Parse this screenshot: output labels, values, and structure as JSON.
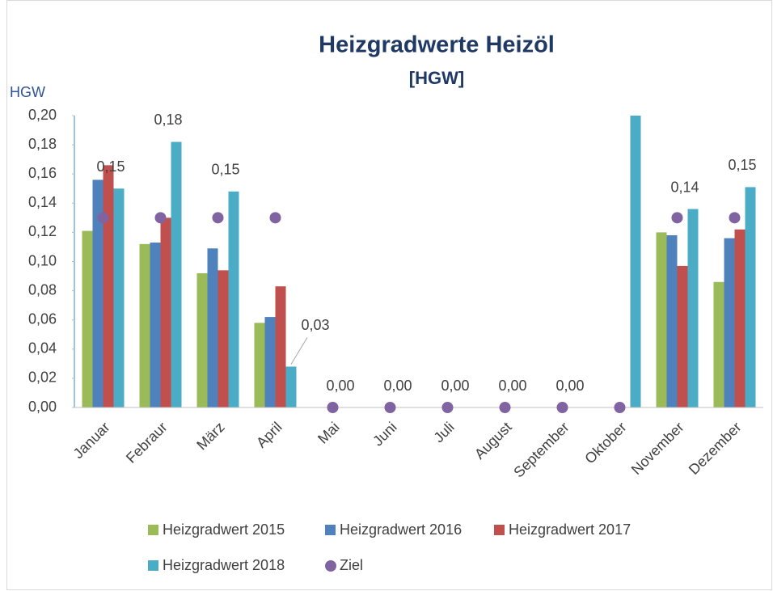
{
  "chart_data": {
    "type": "bar",
    "title": "Heizgradwerte Heizöl",
    "subtitle": "[HGW]",
    "y_label": "HGW",
    "categories": [
      "Januar",
      "Febraur",
      "März",
      "April",
      "Mai",
      "Juni",
      "Juli",
      "August",
      "September",
      "Oktober",
      "November",
      "Dezember"
    ],
    "series": [
      {
        "name": "Heizgradwert 2015",
        "color": "#9bbb59",
        "values": [
          0.121,
          0.112,
          0.092,
          0.058,
          null,
          null,
          null,
          null,
          null,
          null,
          0.12,
          0.086
        ]
      },
      {
        "name": "Heizgradwert 2016",
        "color": "#4f81bd",
        "values": [
          0.156,
          0.113,
          0.109,
          0.062,
          null,
          null,
          null,
          null,
          null,
          null,
          0.118,
          0.116
        ]
      },
      {
        "name": "Heizgradwert 2017",
        "color": "#c0504d",
        "values": [
          0.166,
          0.13,
          0.094,
          0.083,
          null,
          null,
          null,
          null,
          null,
          null,
          0.097,
          0.122
        ]
      },
      {
        "name": "Heizgradwert 2018",
        "color": "#4bacc6",
        "values": [
          0.15,
          0.182,
          0.148,
          0.028,
          0,
          0,
          0,
          0,
          0,
          0.21,
          0.136,
          0.151
        ],
        "value_labels": [
          "0,15",
          "0,18",
          "0,15",
          "0,03",
          "0,00",
          "0,00",
          "0,00",
          "0,00",
          "0,00",
          null,
          "0,14",
          "0,15"
        ]
      },
      {
        "name": "Ziel",
        "color": "#8064a2",
        "type": "scatter",
        "values": [
          0.13,
          0.13,
          0.13,
          0.13,
          0,
          0,
          0,
          0,
          0,
          0,
          0.13,
          0.13
        ]
      }
    ],
    "ylim": [
      0,
      0.2
    ],
    "yticks": [
      {
        "value": 0,
        "label": "0,00"
      },
      {
        "value": 0.02,
        "label": "0,02"
      },
      {
        "value": 0.04,
        "label": "0,04"
      },
      {
        "value": 0.06,
        "label": "0,06"
      },
      {
        "value": 0.08,
        "label": "0,08"
      },
      {
        "value": 0.1,
        "label": "0,10"
      },
      {
        "value": 0.12,
        "label": "0,12"
      },
      {
        "value": 0.14,
        "label": "0,14"
      },
      {
        "value": 0.16,
        "label": "0,16"
      },
      {
        "value": 0.18,
        "label": "0,18"
      },
      {
        "value": 0.2,
        "label": "0,20"
      }
    ],
    "grid": false,
    "legend": "bottom"
  }
}
